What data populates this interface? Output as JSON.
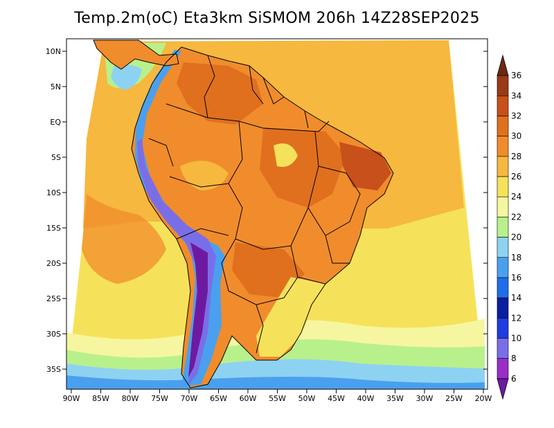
{
  "title": "Temp.2m(oC) Eta3km SiSMOM 206h 14Z28SEP2025",
  "lat_labels": [
    "10N",
    "5N",
    "EQ",
    "5S",
    "10S",
    "15S",
    "20S",
    "25S",
    "30S",
    "35S"
  ],
  "lon_labels": [
    "90W",
    "85W",
    "80W",
    "75W",
    "70W",
    "65W",
    "60W",
    "55W",
    "50W",
    "45W",
    "40W",
    "35W",
    "30W",
    "25W",
    "20W"
  ],
  "colorbar": {
    "levels": [
      "6",
      "8",
      "10",
      "12",
      "14",
      "16",
      "18",
      "20",
      "22",
      "24",
      "26",
      "28",
      "30",
      "32",
      "34",
      "36"
    ],
    "colors": [
      "#6e1aa0",
      "#9a2dc8",
      "#7a6ee8",
      "#1e3ce0",
      "#0a1ea0",
      "#1f6ee8",
      "#4aa0ee",
      "#8ed2f2",
      "#b8f08c",
      "#f6f6a0",
      "#f6e25a",
      "#f6b83e",
      "#f08c2c",
      "#e0701e",
      "#c8501a",
      "#9a3a16",
      "#6e2810"
    ]
  },
  "colors": {
    "ocean_tropical": "#f6b83e",
    "ocean_subtropical": "#f6e25a",
    "ocean_south": "#f6f6a0",
    "land_hot": "#f08c2c",
    "land_hotter": "#e0701e",
    "andes": "#7a6ee8"
  }
}
